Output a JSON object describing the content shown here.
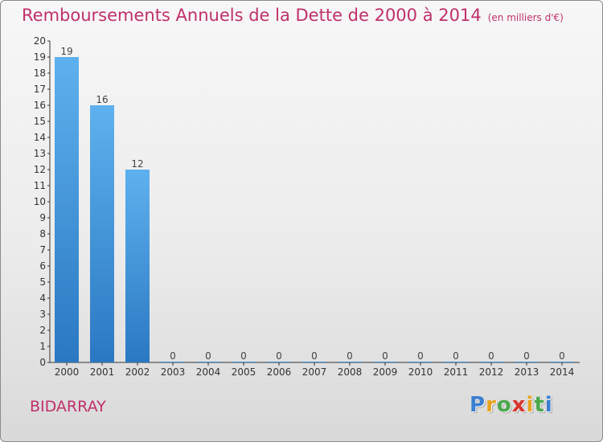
{
  "chart_data": {
    "type": "bar",
    "title": "Remboursements Annuels de la Dette de 2000 à 2014",
    "unit": "(en milliers d'€)",
    "categories": [
      "2000",
      "2001",
      "2002",
      "2003",
      "2004",
      "2005",
      "2006",
      "2007",
      "2008",
      "2009",
      "2010",
      "2011",
      "2012",
      "2013",
      "2014"
    ],
    "values": [
      19,
      16,
      12,
      0,
      0,
      0,
      0,
      0,
      0,
      0,
      0,
      0,
      0,
      0,
      0
    ],
    "data_labels": [
      "19",
      "16",
      "12",
      "0",
      "0",
      "0",
      "0",
      "0",
      "0",
      "0",
      "0",
      "0",
      "0",
      "0",
      "0"
    ],
    "y_ticks": [
      "0",
      "1",
      "2",
      "3",
      "4",
      "5",
      "6",
      "7",
      "8",
      "9",
      "10",
      "11",
      "12",
      "13",
      "14",
      "15",
      "16",
      "17",
      "18",
      "19",
      "20"
    ],
    "ylim": [
      0,
      20
    ],
    "xlabel": "",
    "ylabel": "",
    "grid": false,
    "legend": "none",
    "colors": {
      "bar": "#4f9ee3",
      "bar_dark": "#2a7bc6",
      "title": "#c0306a"
    }
  },
  "commune": "BIDARRAY",
  "logo": {
    "letters": [
      "P",
      "r",
      "o",
      "x",
      "i",
      "t",
      "i"
    ],
    "colors": [
      "#3a7fd0",
      "#e8a21f",
      "#4aa84a",
      "#d8342c",
      "#e8a21f",
      "#4aa84a",
      "#3a7fd0"
    ]
  }
}
